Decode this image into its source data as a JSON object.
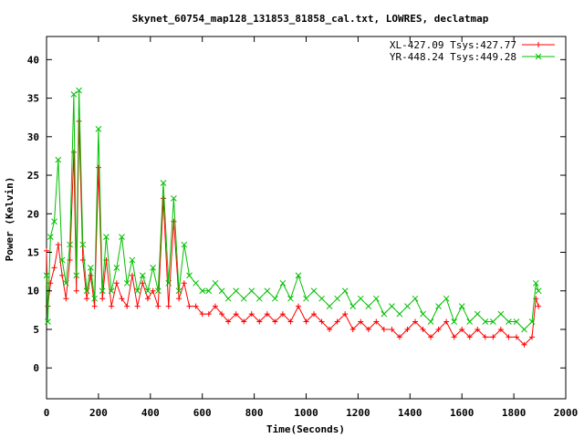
{
  "chart_data": {
    "type": "line",
    "title": "Skynet_60754_map128_131853_81858_cal.txt, LOWRES, declatmap",
    "xlabel": "Time(Seconds)",
    "ylabel": "Power (Kelvin)",
    "xlim": [
      0,
      2000
    ],
    "ylim": [
      -4,
      43
    ],
    "x_ticks": [
      "0",
      "200",
      "400",
      "600",
      "800",
      "1000",
      "1200",
      "1400",
      "1600",
      "1800",
      "2000"
    ],
    "y_ticks": [
      "0",
      "5",
      "10",
      "15",
      "20",
      "25",
      "30",
      "35",
      "40"
    ],
    "grid": false,
    "legend_position": "top-right",
    "series": [
      {
        "name": "XL-427.09 Tsys:427.77",
        "color": "#ff0000",
        "marker": "plus",
        "x": [
          0,
          5,
          15,
          30,
          45,
          60,
          75,
          90,
          105,
          115,
          125,
          140,
          155,
          170,
          185,
          200,
          215,
          230,
          250,
          270,
          290,
          310,
          330,
          350,
          370,
          390,
          410,
          430,
          450,
          470,
          490,
          510,
          530,
          550,
          575,
          600,
          625,
          650,
          675,
          700,
          730,
          760,
          790,
          820,
          850,
          880,
          910,
          940,
          970,
          1000,
          1030,
          1060,
          1090,
          1120,
          1150,
          1180,
          1210,
          1240,
          1270,
          1300,
          1330,
          1360,
          1390,
          1420,
          1450,
          1480,
          1510,
          1540,
          1570,
          1600,
          1630,
          1660,
          1690,
          1720,
          1750,
          1780,
          1810,
          1840,
          1870,
          1885,
          1895
        ],
        "y": [
          15.2,
          8,
          11,
          13,
          16,
          12,
          9,
          14,
          28,
          10,
          32,
          14,
          9,
          12,
          8,
          26,
          9,
          14,
          8,
          11,
          9,
          8,
          12,
          8,
          11,
          9,
          10,
          8,
          22,
          8,
          19,
          9,
          11,
          8,
          8,
          7,
          7,
          8,
          7,
          6,
          7,
          6,
          7,
          6,
          7,
          6,
          7,
          6,
          8,
          6,
          7,
          6,
          5,
          6,
          7,
          5,
          6,
          5,
          6,
          5,
          5,
          4,
          5,
          6,
          5,
          4,
          5,
          6,
          4,
          5,
          4,
          5,
          4,
          4,
          5,
          4,
          4,
          3,
          4,
          9,
          8
        ]
      },
      {
        "name": "YR-448.24 Tsys:449.28",
        "color": "#00c000",
        "marker": "cross",
        "x": [
          0,
          5,
          15,
          30,
          45,
          60,
          75,
          90,
          105,
          115,
          125,
          140,
          155,
          170,
          185,
          200,
          215,
          230,
          250,
          270,
          290,
          310,
          330,
          350,
          370,
          390,
          410,
          430,
          450,
          470,
          490,
          510,
          530,
          550,
          575,
          600,
          625,
          650,
          675,
          700,
          730,
          760,
          790,
          820,
          850,
          880,
          910,
          940,
          970,
          1000,
          1030,
          1060,
          1090,
          1120,
          1150,
          1180,
          1210,
          1240,
          1270,
          1300,
          1330,
          1360,
          1390,
          1420,
          1450,
          1480,
          1510,
          1540,
          1570,
          1600,
          1630,
          1660,
          1690,
          1720,
          1750,
          1780,
          1810,
          1840,
          1870,
          1885,
          1895
        ],
        "y": [
          12,
          6,
          17,
          19,
          27,
          14,
          11,
          16,
          35.5,
          12,
          36,
          16,
          10,
          13,
          9,
          31,
          10,
          17,
          10,
          13,
          17,
          11,
          14,
          10,
          12,
          10,
          13,
          10,
          24,
          11,
          22,
          10,
          16,
          12,
          11,
          10,
          10,
          11,
          10,
          9,
          10,
          9,
          10,
          9,
          10,
          9,
          11,
          9,
          12,
          9,
          10,
          9,
          8,
          9,
          10,
          8,
          9,
          8,
          9,
          7,
          8,
          7,
          8,
          9,
          7,
          6,
          8,
          9,
          6,
          8,
          6,
          7,
          6,
          6,
          7,
          6,
          6,
          5,
          6,
          11,
          10
        ]
      }
    ]
  }
}
